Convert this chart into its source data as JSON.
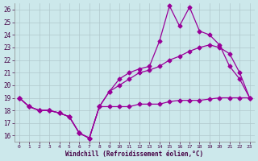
{
  "xlabel": "Windchill (Refroidissement éolien,°C)",
  "ylabel": "",
  "bg_color": "#cce8eb",
  "line_color": "#990099",
  "grid_color": "#b0c8cc",
  "xlim": [
    -0.5,
    23.5
  ],
  "ylim": [
    15.5,
    26.5
  ],
  "xticks": [
    0,
    1,
    2,
    3,
    4,
    5,
    6,
    7,
    8,
    9,
    10,
    11,
    12,
    13,
    14,
    15,
    16,
    17,
    18,
    19,
    20,
    21,
    22,
    23
  ],
  "yticks": [
    16,
    17,
    18,
    19,
    20,
    21,
    22,
    23,
    24,
    25,
    26
  ],
  "series": [
    {
      "x": [
        0,
        1,
        2,
        3,
        4,
        5,
        6,
        7,
        8,
        9,
        10,
        11,
        12,
        13,
        14,
        15,
        16,
        17,
        18,
        19,
        20,
        21,
        22,
        23
      ],
      "y": [
        19.0,
        18.3,
        18.0,
        18.0,
        17.8,
        17.5,
        16.2,
        15.8,
        18.3,
        18.3,
        18.3,
        18.3,
        18.5,
        18.5,
        18.5,
        18.7,
        18.8,
        18.8,
        18.8,
        18.9,
        19.0,
        19.0,
        19.0,
        19.0
      ]
    },
    {
      "x": [
        0,
        1,
        2,
        3,
        4,
        5,
        6,
        7,
        8,
        9,
        10,
        11,
        12,
        13,
        14,
        15,
        16,
        17,
        18,
        19,
        20,
        21,
        22,
        23
      ],
      "y": [
        19.0,
        18.3,
        18.0,
        18.0,
        17.8,
        17.5,
        16.2,
        15.8,
        18.3,
        19.5,
        20.0,
        20.5,
        21.0,
        21.2,
        21.5,
        22.0,
        22.3,
        22.7,
        23.0,
        23.2,
        23.0,
        22.5,
        21.0,
        19.0
      ]
    },
    {
      "x": [
        0,
        1,
        2,
        3,
        4,
        5,
        6,
        7,
        8,
        9,
        10,
        11,
        12,
        13,
        14,
        15,
        16,
        17,
        18,
        19,
        20,
        21,
        22,
        23
      ],
      "y": [
        19.0,
        18.3,
        18.0,
        18.0,
        17.8,
        17.5,
        16.2,
        15.8,
        18.3,
        19.5,
        20.5,
        21.0,
        21.3,
        21.5,
        23.5,
        26.3,
        24.7,
        26.2,
        24.3,
        24.0,
        23.2,
        21.5,
        20.5,
        19.0
      ]
    }
  ],
  "marker": "D",
  "markersize": 2.5,
  "linewidth": 0.9
}
